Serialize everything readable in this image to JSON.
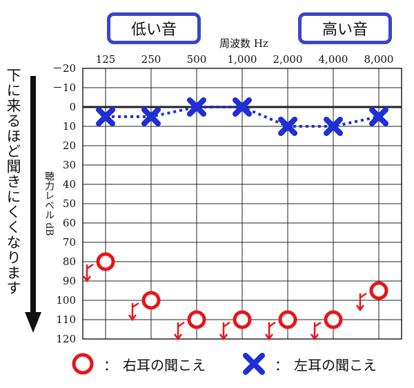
{
  "header": {
    "low_tag": "低い音",
    "high_tag": "高い音",
    "freq_unit": "周波数 Hz"
  },
  "side_note": "下に来るほど聞きにくくなります",
  "colors": {
    "right_ear": "#e8141b",
    "left_ear": "#1f2fd6",
    "tag_border": "#3a45c8",
    "arrow": "#111111"
  },
  "legend": {
    "separator": "：",
    "right_label": "右耳の聞こえ",
    "left_label": "左耳の聞こえ"
  },
  "chart_data": {
    "type": "line",
    "x": [
      "125",
      "250",
      "500",
      "1,000",
      "2,000",
      "4,000",
      "8,000"
    ],
    "ylabel": "聴力レベル dB",
    "ylim": [
      -20,
      120
    ],
    "yticks": [
      "－20",
      "－10",
      "0",
      "10",
      "20",
      "30",
      "40",
      "50",
      "60",
      "70",
      "80",
      "90",
      "100",
      "110",
      "120"
    ],
    "y_inverted": true,
    "grid": true,
    "series": [
      {
        "name": "右耳の聞こえ",
        "marker": "circle",
        "connected": false,
        "scale_out": true,
        "values": [
          80,
          100,
          110,
          110,
          110,
          110,
          95
        ]
      },
      {
        "name": "左耳の聞こえ",
        "marker": "cross",
        "connected": true,
        "line_style": "dotted",
        "values": [
          5,
          5,
          0,
          0,
          10,
          10,
          5
        ]
      }
    ]
  }
}
